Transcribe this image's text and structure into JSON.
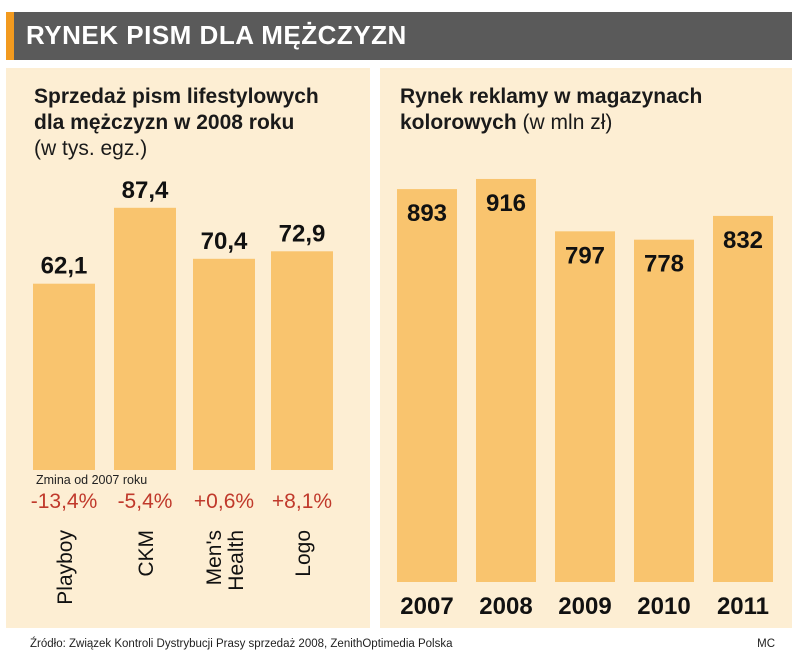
{
  "header": {
    "title": "RYNEK PISM DLA MĘŻCZYZN"
  },
  "colors": {
    "bar": "#f9c46e",
    "panel": "#fdeed3",
    "change": "#c0392b",
    "title_bg": "#5a5a5a",
    "accent": "#f29a1f"
  },
  "left_chart": {
    "title_line1": "Sprzedaż pism lifestylowych",
    "title_line2": "dla mężczyzn w 2008 roku",
    "subtitle": "(w tys. egz.)",
    "change_label": "Zmina od 2007 roku"
  },
  "right_chart": {
    "title_line1": "Rynek reklamy w magazynach",
    "title_line2": "kolorowych",
    "subtitle": "(w mln zł)"
  },
  "footer": {
    "source": "Źródło: Związek Kontroli Dystrybucji Prasy sprzedaż 2008, ZenithOptimedia Polska",
    "credit": "MC"
  },
  "chart_data": [
    {
      "type": "bar",
      "title": "Sprzedaż pism lifestylowych dla mężczyzn w 2008 roku",
      "subtitle": "(w tys. egz.)",
      "categories": [
        "Playboy",
        "CKM",
        "Men's Health",
        "Logo"
      ],
      "category_lines": [
        [
          "Playboy"
        ],
        [
          "CKM"
        ],
        [
          "Men's",
          "Health"
        ],
        [
          "Logo"
        ]
      ],
      "values": [
        62.1,
        87.4,
        70.4,
        72.9
      ],
      "value_labels": [
        "62,1",
        "87,4",
        "70,4",
        "72,9"
      ],
      "change_labels": [
        "-13,4%",
        "-5,4%",
        "+0,6%",
        "+8,1%"
      ],
      "ylim": [
        0,
        100
      ],
      "grid": false
    },
    {
      "type": "bar",
      "title": "Rynek reklamy w magazynach kolorowych",
      "subtitle": "(w mln zł)",
      "categories": [
        "2007",
        "2008",
        "2009",
        "2010",
        "2011"
      ],
      "values": [
        893,
        916,
        797,
        778,
        832
      ],
      "value_labels": [
        "893",
        "916",
        "797",
        "778",
        "832"
      ],
      "ylim": [
        0,
        1000
      ],
      "grid": false
    }
  ]
}
